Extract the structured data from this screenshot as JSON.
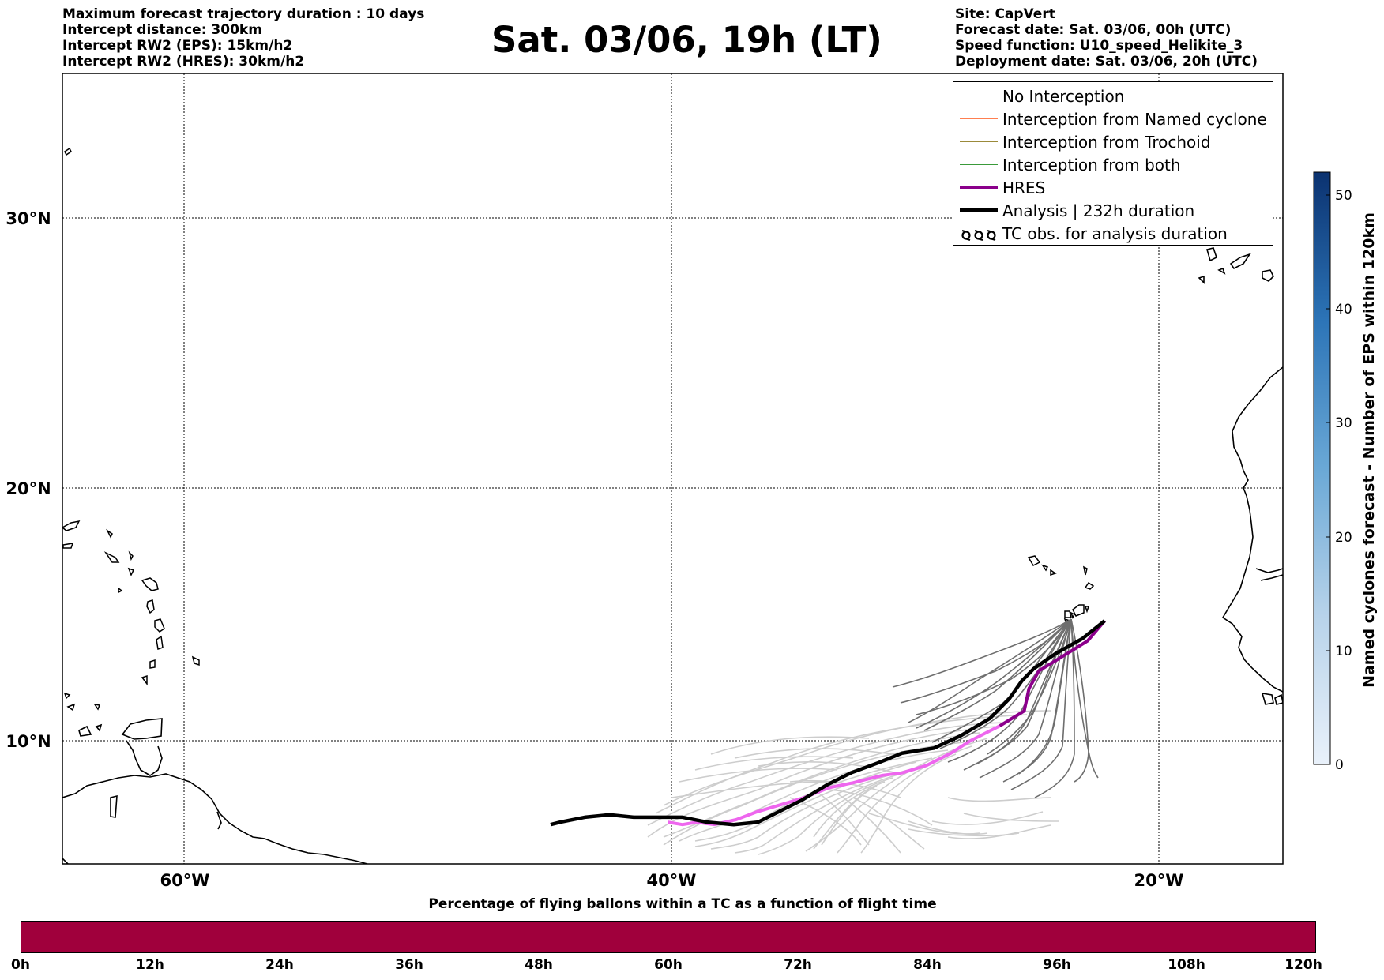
{
  "header": {
    "left": [
      "Maximum forecast trajectory duration : 10 days",
      "Intercept distance: 300km",
      "Intercept RW2 (EPS):  15km/h2",
      "Intercept RW2 (HRES): 30km/h2"
    ],
    "title": "Sat. 03/06, 19h (LT)",
    "right": [
      "Site: CapVert",
      "Forecast date: Sat. 03/06, 00h (UTC)",
      "Speed function: U10_speed_Helikite_3",
      "Deployment date: Sat. 03/06, 20h (UTC)"
    ]
  },
  "map": {
    "lat_labels": [
      "30°N",
      "20°N",
      "10°N"
    ],
    "lon_labels": [
      "60°W",
      "40°W",
      "20°W"
    ],
    "extent": {
      "lon": [
        -65,
        -15
      ],
      "lat": [
        5.5,
        34.8
      ]
    }
  },
  "legend": {
    "items": [
      {
        "label": "No Interception",
        "color": "#808080",
        "width": 1
      },
      {
        "label": "Interception from Named cyclone",
        "color": "#ff7f50",
        "width": 1.5
      },
      {
        "label": "Interception from Trochoid",
        "color": "#9b8a3a",
        "width": 1.5
      },
      {
        "label": "Interception from both",
        "color": "#3a9a3a",
        "width": 1.5
      },
      {
        "label": "HRES",
        "color": "#8b008b",
        "width": 4
      },
      {
        "label": "Analysis | 232h duration",
        "color": "#000000",
        "width": 4
      },
      {
        "label": "TC obs. for analysis duration",
        "color": "#000000",
        "icon": "tc-symbol"
      }
    ]
  },
  "colorbar": {
    "title": "Named cyclones forecast - Number of EPS within 120km",
    "ticks": [
      "0",
      "10",
      "20",
      "30",
      "40",
      "50"
    ],
    "range": [
      0,
      52
    ],
    "color_low": "#e6eef8",
    "color_high": "#0b3270"
  },
  "bottom_bar": {
    "title": "Percentage of flying ballons within a TC as a function of flight time",
    "color": "#a0003c",
    "ticks": [
      "0h",
      "12h",
      "24h",
      "36h",
      "48h",
      "60h",
      "72h",
      "84h",
      "96h",
      "108h",
      "120h"
    ]
  },
  "chart_data": {
    "type": "line",
    "x_unit": "degrees longitude",
    "y_unit": "degrees latitude",
    "series": [
      {
        "name": "Analysis | 232h duration",
        "color": "#000000",
        "points": [
          [
            -22.3,
            14.8
          ],
          [
            -23.2,
            14.1
          ],
          [
            -24.3,
            13.5
          ],
          [
            -25.2,
            12.9
          ],
          [
            -25.7,
            12.4
          ],
          [
            -26.2,
            11.7
          ],
          [
            -27.0,
            10.9
          ],
          [
            -28.2,
            10.2
          ],
          [
            -29.3,
            9.7
          ],
          [
            -30.6,
            9.5
          ],
          [
            -31.6,
            9.1
          ],
          [
            -32.7,
            8.7
          ],
          [
            -33.7,
            8.2
          ],
          [
            -34.7,
            7.6
          ],
          [
            -35.7,
            7.1
          ],
          [
            -36.5,
            6.7
          ],
          [
            -37.5,
            6.6
          ],
          [
            -38.6,
            6.7
          ],
          [
            -39.6,
            6.9
          ],
          [
            -40.6,
            6.9
          ],
          [
            -41.6,
            6.9
          ],
          [
            -42.6,
            7.0
          ],
          [
            -43.6,
            6.9
          ],
          [
            -44.6,
            6.7
          ],
          [
            -45.0,
            6.6
          ]
        ]
      },
      {
        "name": "HRES",
        "color": "#8b008b",
        "points": [
          [
            -22.3,
            14.8
          ],
          [
            -23.0,
            14.0
          ],
          [
            -24.0,
            13.4
          ],
          [
            -25.0,
            12.8
          ],
          [
            -25.4,
            12.1
          ],
          [
            -25.6,
            11.2
          ],
          [
            -26.6,
            10.6
          ],
          [
            -27.8,
            10.0
          ],
          [
            -28.6,
            9.5
          ],
          [
            -29.6,
            9.0
          ],
          [
            -30.6,
            8.7
          ],
          [
            -31.4,
            8.6
          ],
          [
            -32.6,
            8.3
          ],
          [
            -33.6,
            8.1
          ],
          [
            -34.6,
            7.7
          ],
          [
            -35.6,
            7.4
          ],
          [
            -36.6,
            7.1
          ],
          [
            -37.4,
            6.8
          ],
          [
            -38.3,
            6.6
          ],
          [
            -39.0,
            6.7
          ],
          [
            -39.6,
            6.6
          ],
          [
            -40.2,
            6.7
          ]
        ]
      }
    ]
  }
}
